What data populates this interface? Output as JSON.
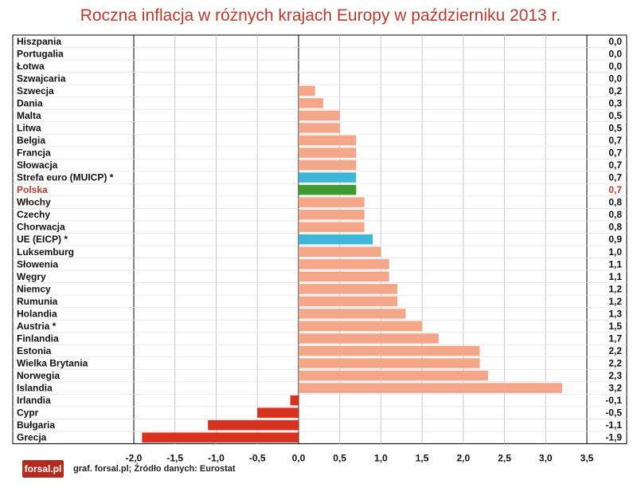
{
  "title": "Roczna inflacja w różnych krajach Europy w październiku 2013 r.",
  "footer": {
    "logo_text": "forsal.pl",
    "source": "graf. forsal.pl; Źródło danych: Eurostat"
  },
  "colors": {
    "title": "#c0392b",
    "highlight_text": "#c0392b",
    "default_bar": "#f4a688",
    "euro_bar": "#3eb6d8",
    "poland_bar": "#3c9a2e",
    "negative_bar": "#d8321e",
    "grid": "#c8c8c8",
    "zero_line": "#000000"
  },
  "chart_data": {
    "type": "bar",
    "orientation": "horizontal",
    "title": "Roczna inflacja w różnych krajach Europy w październiku 2013 r.",
    "xlabel": "",
    "ylabel": "",
    "xlim": [
      -2.0,
      3.5
    ],
    "xticks": [
      "-2,0",
      "-1,5",
      "-1,0",
      "-0,5",
      "0,0",
      "0,5",
      "1,0",
      "1,5",
      "2,0",
      "2,5",
      "3,0",
      "3,5"
    ],
    "xtick_values": [
      -2.0,
      -1.5,
      -1.0,
      -0.5,
      0.0,
      0.5,
      1.0,
      1.5,
      2.0,
      2.5,
      3.0,
      3.5
    ],
    "grid": true,
    "categories": [
      "Hiszpania",
      "Portugalia",
      "Łotwa",
      "Szwajcaria",
      "Szwecja",
      "Dania",
      "Malta",
      "Litwa",
      "Belgia",
      "Francja",
      "Słowacja",
      "Strefa euro (MUICP) *",
      "Polska",
      "Włochy",
      "Czechy",
      "Chorwacja",
      "UE (EICP) *",
      "Luksemburg",
      "Słowenia",
      "Węgry",
      "Niemcy",
      "Rumunia",
      "Holandia",
      "Austria *",
      "Finlandia",
      "Estonia",
      "Wielka Brytania",
      "Norwegia",
      "Islandia",
      "Irlandia",
      "Cypr",
      "Bułgaria",
      "Grecja"
    ],
    "values": [
      0.0,
      0.0,
      0.0,
      0.0,
      0.2,
      0.3,
      0.5,
      0.5,
      0.7,
      0.7,
      0.7,
      0.7,
      0.7,
      0.8,
      0.8,
      0.8,
      0.9,
      1.0,
      1.1,
      1.1,
      1.2,
      1.2,
      1.3,
      1.5,
      1.7,
      2.2,
      2.2,
      2.3,
      3.2,
      -0.1,
      -0.5,
      -1.1,
      -1.9
    ],
    "value_labels": [
      "0,0",
      "0,0",
      "0,0",
      "0,0",
      "0,2",
      "0,3",
      "0,5",
      "0,5",
      "0,7",
      "0,7",
      "0,7",
      "0,7",
      "0,7",
      "0,8",
      "0,8",
      "0,8",
      "0,9",
      "1,0",
      "1,1",
      "1,1",
      "1,2",
      "1,2",
      "1,3",
      "1,5",
      "1,7",
      "2,2",
      "2,2",
      "2,3",
      "3,2",
      "-0,1",
      "-0,5",
      "-1,1",
      "-1,9"
    ],
    "bar_kinds": [
      "default",
      "default",
      "default",
      "default",
      "default",
      "default",
      "default",
      "default",
      "default",
      "default",
      "default",
      "euro",
      "poland",
      "default",
      "default",
      "default",
      "euro",
      "default",
      "default",
      "default",
      "default",
      "default",
      "default",
      "default",
      "default",
      "default",
      "default",
      "default",
      "default",
      "negative",
      "negative",
      "negative",
      "negative"
    ],
    "highlight_label": "Polska"
  }
}
